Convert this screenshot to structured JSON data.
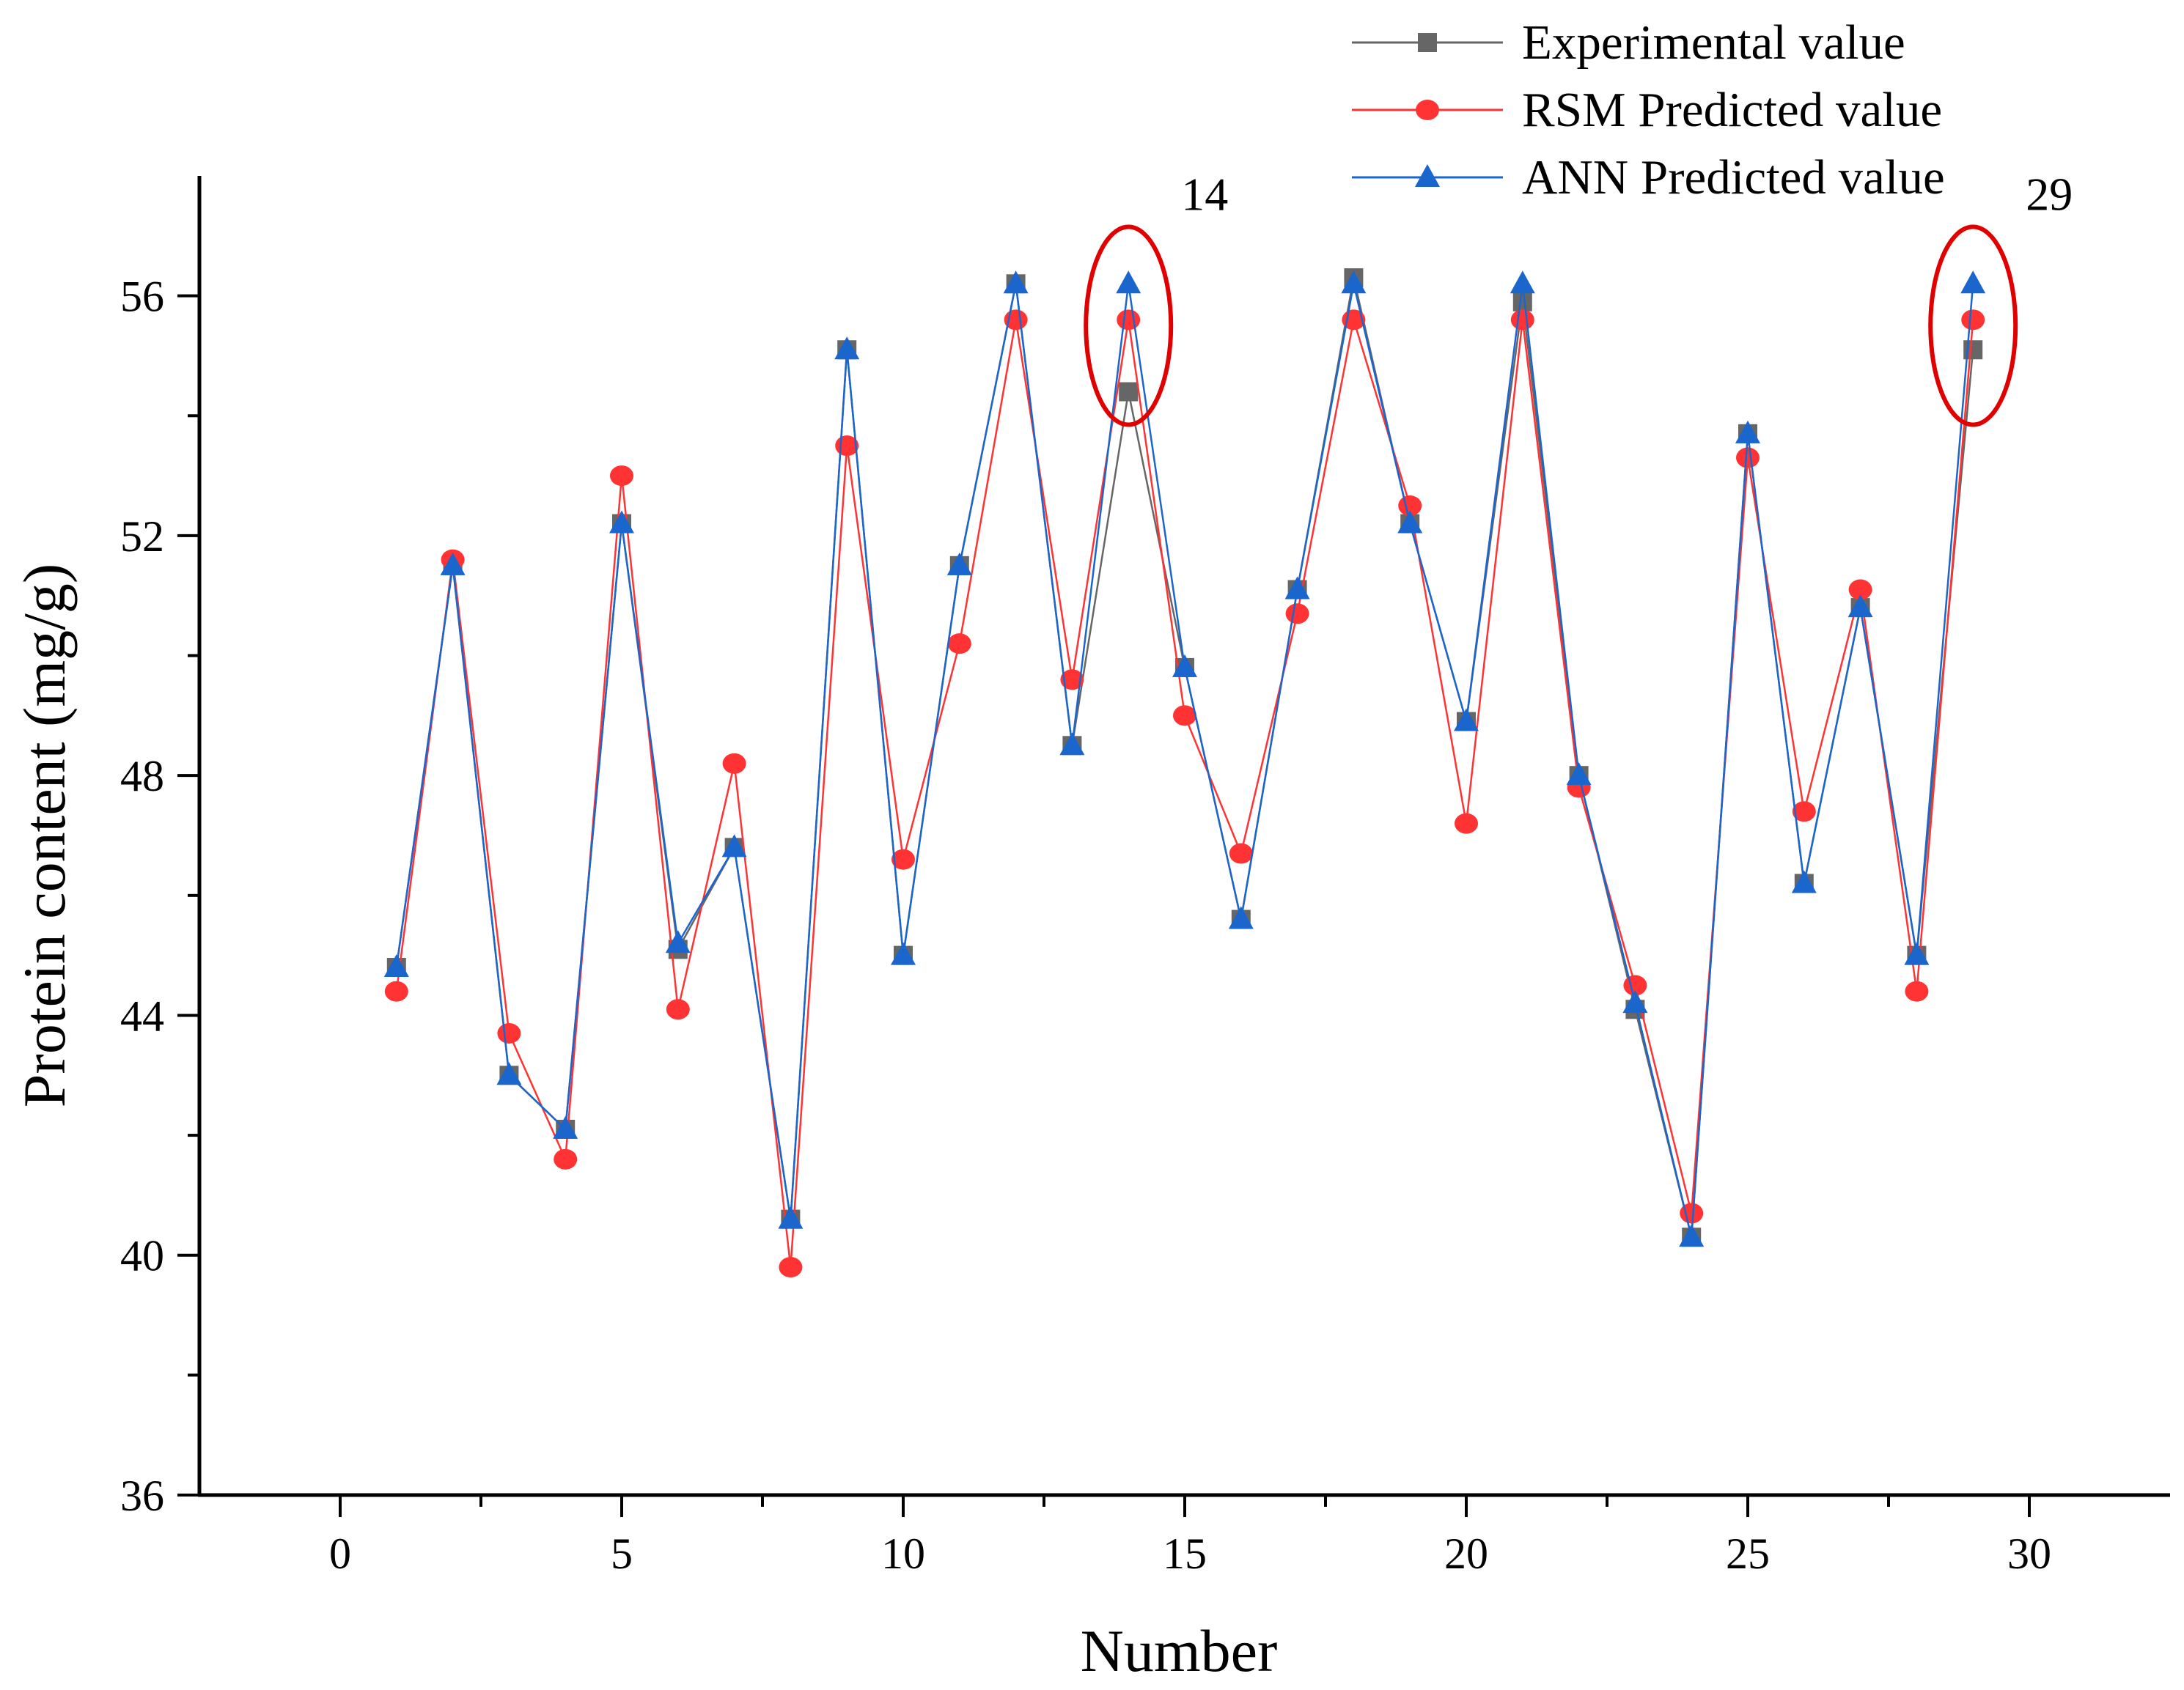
{
  "chart_data": {
    "type": "line",
    "title": "",
    "xlabel": "Number",
    "ylabel": "Protein content (mg/g)",
    "xlim": [
      -2.5,
      32.5
    ],
    "ylim": [
      36,
      58
    ],
    "xticks": [
      0,
      5,
      10,
      15,
      20,
      25,
      30
    ],
    "yticks": [
      36,
      40,
      44,
      48,
      52,
      56
    ],
    "grid": false,
    "legend_position": "top-right",
    "x": [
      1,
      2,
      3,
      4,
      5,
      6,
      7,
      8,
      9,
      10,
      11,
      12,
      13,
      14,
      15,
      16,
      17,
      18,
      19,
      20,
      21,
      22,
      23,
      24,
      25,
      26,
      27,
      28,
      29
    ],
    "series": [
      {
        "name": "Experimental value",
        "color": "#666666",
        "marker": "square",
        "values": [
          44.8,
          51.5,
          43.0,
          42.1,
          52.2,
          45.1,
          46.8,
          40.6,
          55.1,
          45.0,
          51.5,
          56.2,
          48.5,
          54.4,
          49.8,
          45.6,
          51.1,
          56.3,
          52.2,
          48.9,
          55.9,
          48.0,
          44.1,
          40.3,
          53.7,
          46.2,
          50.8,
          45.0,
          55.1
        ]
      },
      {
        "name": "RSM Predicted value",
        "color": "#ff3333",
        "marker": "circle",
        "values": [
          44.4,
          51.6,
          43.7,
          41.6,
          53.0,
          44.1,
          48.2,
          39.8,
          53.5,
          46.6,
          50.2,
          55.6,
          49.6,
          55.6,
          49.0,
          46.7,
          50.7,
          55.6,
          52.5,
          47.2,
          55.6,
          47.8,
          44.5,
          40.7,
          53.3,
          47.4,
          51.1,
          44.4,
          55.6
        ]
      },
      {
        "name": "ANN Predicted value",
        "color": "#1a66cc",
        "marker": "triangle",
        "values": [
          44.8,
          51.5,
          43.0,
          42.1,
          52.2,
          45.2,
          46.8,
          40.6,
          55.1,
          45.0,
          51.5,
          56.2,
          48.5,
          56.2,
          49.8,
          45.6,
          51.1,
          56.2,
          52.2,
          48.9,
          56.2,
          48.0,
          44.2,
          40.3,
          53.7,
          46.2,
          50.8,
          45.0,
          56.2
        ]
      }
    ],
    "annotations": [
      {
        "text": "14",
        "x": 14,
        "y": 55.5,
        "highlight": "ellipse",
        "color": "#e00000"
      },
      {
        "text": "29",
        "x": 29,
        "y": 55.5,
        "highlight": "ellipse",
        "color": "#e00000"
      }
    ]
  }
}
